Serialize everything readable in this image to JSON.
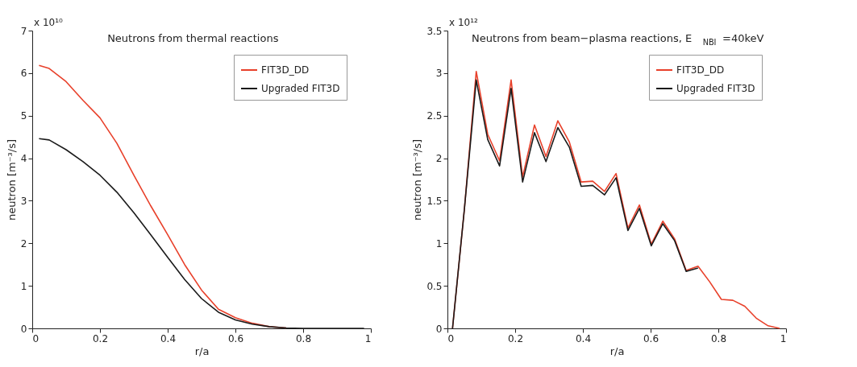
{
  "chart_data": [
    {
      "type": "line",
      "title": "Neutrons from thermal reactions",
      "xlabel": "r/a",
      "ylabel": "neutron [m⁻³/s]",
      "annotations": [
        "x 10¹⁰"
      ],
      "xlim": [
        0,
        1
      ],
      "xticks": [
        0,
        0.2,
        0.4,
        0.6,
        0.8,
        1
      ],
      "ylim": [
        0,
        7
      ],
      "yticks": [
        0,
        1,
        2,
        3,
        4,
        5,
        6,
        7
      ],
      "legend": "top right",
      "series": [
        {
          "name": "FIT3D_DD",
          "color": "#e8402a",
          "x": [
            0.02,
            0.05,
            0.1,
            0.15,
            0.2,
            0.25,
            0.3,
            0.35,
            0.4,
            0.45,
            0.5,
            0.55,
            0.6,
            0.65,
            0.7,
            0.75
          ],
          "values": [
            6.18,
            6.11,
            5.8,
            5.36,
            4.95,
            4.35,
            3.6,
            2.88,
            2.2,
            1.5,
            0.9,
            0.45,
            0.25,
            0.12,
            0.04,
            0.01
          ]
        },
        {
          "name": "Upgraded FIT3D",
          "color": "#1a1a1a",
          "x": [
            0.02,
            0.05,
            0.1,
            0.15,
            0.2,
            0.25,
            0.3,
            0.35,
            0.4,
            0.45,
            0.5,
            0.55,
            0.6,
            0.65,
            0.7,
            0.75,
            0.8,
            0.9,
            0.98
          ],
          "values": [
            4.46,
            4.43,
            4.2,
            3.92,
            3.6,
            3.2,
            2.72,
            2.2,
            1.67,
            1.15,
            0.7,
            0.38,
            0.2,
            0.1,
            0.04,
            0.01,
            0,
            0,
            0
          ]
        }
      ]
    },
    {
      "type": "line",
      "title": "Neutrons from beam−plasma reactions, E$_{NBI}$ =40keV",
      "xlabel": "r/a",
      "ylabel": "neutron [m⁻³/s]",
      "annotations": [
        "x 10¹²"
      ],
      "xlim": [
        0,
        1
      ],
      "xticks": [
        0,
        0.2,
        0.4,
        0.6,
        0.8,
        1
      ],
      "ylim": [
        0,
        3.5
      ],
      "yticks": [
        0,
        0.5,
        1,
        1.5,
        2,
        2.5,
        3,
        3.5
      ],
      "legend": "top right",
      "series": [
        {
          "name": "FIT3D_DD",
          "color": "#e8402a",
          "x": [
            0.015,
            0.05,
            0.085,
            0.119,
            0.154,
            0.188,
            0.222,
            0.257,
            0.291,
            0.326,
            0.36,
            0.395,
            0.429,
            0.464,
            0.498,
            0.533,
            0.567,
            0.602,
            0.636,
            0.671,
            0.705,
            0.74,
            0.774,
            0.809,
            0.843,
            0.878,
            0.912,
            0.947,
            0.981
          ],
          "values": [
            0,
            1.4,
            3.02,
            2.28,
            1.97,
            2.92,
            1.78,
            2.39,
            2.02,
            2.44,
            2.19,
            1.72,
            1.73,
            1.61,
            1.82,
            1.18,
            1.45,
            0.99,
            1.26,
            1.05,
            0.68,
            0.73,
            0.55,
            0.34,
            0.33,
            0.26,
            0.12,
            0.03,
            0
          ]
        },
        {
          "name": "Upgraded FIT3D",
          "color": "#1a1a1a",
          "x": [
            0.015,
            0.05,
            0.085,
            0.119,
            0.154,
            0.188,
            0.222,
            0.257,
            0.291,
            0.326,
            0.36,
            0.395,
            0.429,
            0.464,
            0.498,
            0.533,
            0.567,
            0.602,
            0.636,
            0.671,
            0.705,
            0.74
          ],
          "values": [
            0,
            1.4,
            2.92,
            2.22,
            1.91,
            2.82,
            1.72,
            2.3,
            1.96,
            2.36,
            2.13,
            1.67,
            1.68,
            1.57,
            1.77,
            1.15,
            1.41,
            0.97,
            1.23,
            1.03,
            0.67,
            0.71
          ]
        }
      ]
    }
  ]
}
